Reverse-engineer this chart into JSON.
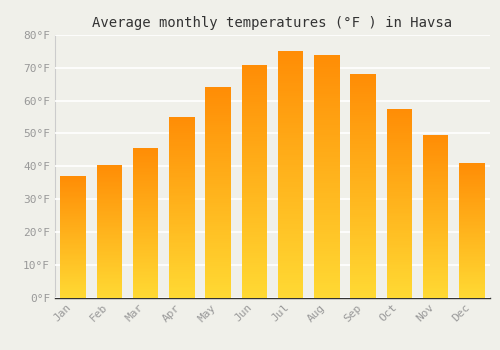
{
  "title": "Average monthly temperatures (°F ) in Havsa",
  "months": [
    "Jan",
    "Feb",
    "Mar",
    "Apr",
    "May",
    "Jun",
    "Jul",
    "Aug",
    "Sep",
    "Oct",
    "Nov",
    "Dec"
  ],
  "values": [
    37,
    40.5,
    45.5,
    55,
    64,
    71,
    75,
    74,
    68,
    57.5,
    49.5,
    41
  ],
  "bar_color_main": "#FFB300",
  "bar_color_light": "#FFD966",
  "background_color": "#F0F0EA",
  "grid_color": "#FFFFFF",
  "ylim": [
    0,
    80
  ],
  "yticks": [
    0,
    10,
    20,
    30,
    40,
    50,
    60,
    70,
    80
  ],
  "ytick_labels": [
    "0°F",
    "10°F",
    "20°F",
    "30°F",
    "40°F",
    "50°F",
    "60°F",
    "70°F",
    "80°F"
  ],
  "tick_color": "#999999",
  "title_fontsize": 10,
  "tick_fontsize": 8,
  "font_family": "monospace",
  "title_color": "#333333"
}
